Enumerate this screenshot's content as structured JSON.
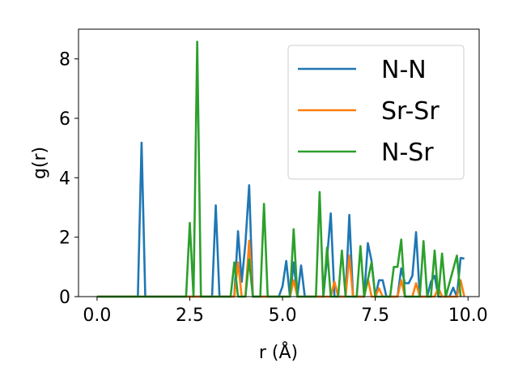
{
  "chart_data": {
    "type": "line",
    "title": "",
    "xlabel": "r (Å)",
    "ylabel": "g(r)",
    "xlim": [
      -0.5,
      10.3
    ],
    "ylim": [
      0,
      9
    ],
    "xticks": [
      0.0,
      2.5,
      5.0,
      7.5,
      10.0
    ],
    "xtick_labels": [
      "0.0",
      "2.5",
      "5.0",
      "7.5",
      "10.0"
    ],
    "yticks": [
      0,
      2,
      4,
      6,
      8
    ],
    "ytick_labels": [
      "0",
      "2",
      "4",
      "6",
      "8"
    ],
    "grid": false,
    "legend_position": "top-right",
    "series": [
      {
        "name": "N-N",
        "color": "#1f77b4",
        "points": [
          [
            0,
            0
          ],
          [
            1.1,
            0
          ],
          [
            1.2,
            5.18
          ],
          [
            1.3,
            0
          ],
          [
            3.1,
            0
          ],
          [
            3.2,
            3.07
          ],
          [
            3.3,
            0
          ],
          [
            3.7,
            0
          ],
          [
            3.8,
            2.2
          ],
          [
            3.9,
            0.5
          ],
          [
            4.0,
            1.8
          ],
          [
            4.1,
            3.75
          ],
          [
            4.2,
            0
          ],
          [
            4.9,
            0
          ],
          [
            5.0,
            0.35
          ],
          [
            5.1,
            1.2
          ],
          [
            5.2,
            0
          ],
          [
            5.3,
            1.15
          ],
          [
            5.4,
            0
          ],
          [
            5.5,
            1.05
          ],
          [
            5.6,
            0
          ],
          [
            6.1,
            0
          ],
          [
            6.2,
            1.3
          ],
          [
            6.3,
            2.8
          ],
          [
            6.4,
            0
          ],
          [
            6.7,
            0
          ],
          [
            6.8,
            2.75
          ],
          [
            6.9,
            0
          ],
          [
            7.2,
            0
          ],
          [
            7.3,
            1.8
          ],
          [
            7.4,
            1.2
          ],
          [
            7.5,
            0
          ],
          [
            7.6,
            0.55
          ],
          [
            7.7,
            0.55
          ],
          [
            7.8,
            0
          ],
          [
            8.1,
            0
          ],
          [
            8.2,
            0.95
          ],
          [
            8.3,
            0.45
          ],
          [
            8.4,
            0.45
          ],
          [
            8.5,
            0.7
          ],
          [
            8.6,
            2.17
          ],
          [
            8.7,
            0
          ],
          [
            8.9,
            0
          ],
          [
            9.0,
            0.5
          ],
          [
            9.1,
            0.7
          ],
          [
            9.2,
            0
          ],
          [
            9.5,
            0
          ],
          [
            9.6,
            0.3
          ],
          [
            9.7,
            0
          ],
          [
            9.8,
            1.3
          ],
          [
            9.9,
            1.28
          ]
        ]
      },
      {
        "name": "Sr-Sr",
        "color": "#ff7f0e",
        "points": [
          [
            0,
            0
          ],
          [
            3.7,
            0
          ],
          [
            3.8,
            1.15
          ],
          [
            3.9,
            0
          ],
          [
            4.0,
            0
          ],
          [
            4.1,
            1.88
          ],
          [
            4.2,
            0
          ],
          [
            5.2,
            0
          ],
          [
            5.3,
            0.55
          ],
          [
            5.4,
            0
          ],
          [
            6.3,
            0
          ],
          [
            6.4,
            0.5
          ],
          [
            6.5,
            0
          ],
          [
            6.7,
            0
          ],
          [
            6.8,
            1.38
          ],
          [
            6.9,
            0
          ],
          [
            7.2,
            0
          ],
          [
            7.3,
            0.6
          ],
          [
            7.4,
            0
          ],
          [
            7.5,
            0
          ],
          [
            7.6,
            0.28
          ],
          [
            7.7,
            0
          ],
          [
            8.1,
            0
          ],
          [
            8.2,
            0.55
          ],
          [
            8.3,
            0
          ],
          [
            8.5,
            0
          ],
          [
            8.6,
            0.45
          ],
          [
            8.7,
            0
          ],
          [
            9.1,
            0
          ],
          [
            9.2,
            0.3
          ],
          [
            9.3,
            0
          ],
          [
            9.7,
            0
          ],
          [
            9.8,
            0.55
          ],
          [
            9.9,
            0
          ]
        ]
      },
      {
        "name": "N-Sr",
        "color": "#2ca02c",
        "points": [
          [
            0,
            0
          ],
          [
            2.4,
            0
          ],
          [
            2.5,
            2.48
          ],
          [
            2.6,
            0
          ],
          [
            2.7,
            8.58
          ],
          [
            2.8,
            0
          ],
          [
            3.6,
            0
          ],
          [
            3.7,
            1.15
          ],
          [
            3.8,
            0
          ],
          [
            4.0,
            0
          ],
          [
            4.1,
            1.25
          ],
          [
            4.2,
            0
          ],
          [
            4.4,
            0
          ],
          [
            4.5,
            3.12
          ],
          [
            4.6,
            0
          ],
          [
            5.2,
            0
          ],
          [
            5.3,
            2.27
          ],
          [
            5.4,
            0
          ],
          [
            5.9,
            0
          ],
          [
            6.0,
            3.52
          ],
          [
            6.1,
            0
          ],
          [
            6.2,
            1.65
          ],
          [
            6.3,
            0
          ],
          [
            6.5,
            0
          ],
          [
            6.6,
            1.55
          ],
          [
            6.7,
            0
          ],
          [
            7.0,
            0
          ],
          [
            7.1,
            1.7
          ],
          [
            7.2,
            0
          ],
          [
            7.4,
            1.15
          ],
          [
            7.5,
            0
          ],
          [
            7.9,
            0
          ],
          [
            8.0,
            1.0
          ],
          [
            8.1,
            1.0
          ],
          [
            8.2,
            1.92
          ],
          [
            8.3,
            0
          ],
          [
            8.7,
            0
          ],
          [
            8.8,
            1.87
          ],
          [
            8.9,
            0
          ],
          [
            9.0,
            0
          ],
          [
            9.1,
            1.55
          ],
          [
            9.2,
            0
          ],
          [
            9.3,
            1.45
          ],
          [
            9.4,
            0
          ],
          [
            9.7,
            1.38
          ],
          [
            9.8,
            0
          ]
        ]
      }
    ]
  }
}
